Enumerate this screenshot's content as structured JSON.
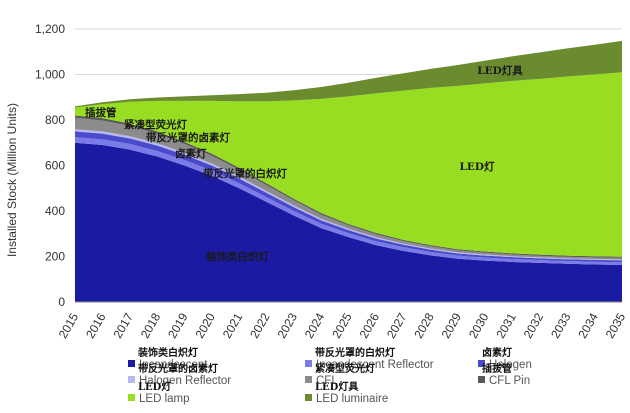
{
  "chart_data": {
    "type": "area",
    "stacked": true,
    "ylabel": "Installed Stock (Million Units)",
    "ylim": [
      0,
      1200
    ],
    "yticks": [
      0,
      200,
      400,
      600,
      800,
      1000,
      1200
    ],
    "ytick_labels": [
      "0",
      "200",
      "400",
      "600",
      "800",
      "1,000",
      "1,200"
    ],
    "categories": [
      "2015",
      "2016",
      "2017",
      "2018",
      "2019",
      "2020",
      "2021",
      "2022",
      "2023",
      "2024",
      "2025",
      "2026",
      "2027",
      "2028",
      "2029",
      "2030",
      "2031",
      "2032",
      "2033",
      "2034",
      "2035"
    ],
    "series": [
      {
        "name": "Incandescent",
        "name_cn": "装饰类白炽灯",
        "color": "#1a1aa3",
        "values": [
          700,
          690,
          670,
          640,
          600,
          555,
          500,
          440,
          380,
          325,
          285,
          250,
          225,
          205,
          190,
          182,
          176,
          172,
          168,
          165,
          163
        ]
      },
      {
        "name": "Incandescent Reflector",
        "name_cn": "带反光罩的白炽灯",
        "color": "#7b7be8",
        "values": [
          25,
          25,
          25,
          24,
          24,
          23,
          22,
          21,
          20,
          19,
          18,
          17,
          16,
          15,
          14,
          13,
          13,
          12,
          12,
          12,
          12
        ]
      },
      {
        "name": "Halogen",
        "name_cn": "卤素灯",
        "color": "#4a4acc",
        "values": [
          25,
          25,
          24,
          24,
          23,
          22,
          21,
          19,
          17,
          15,
          13,
          12,
          11,
          10,
          9,
          9,
          8,
          8,
          8,
          8,
          8
        ]
      },
      {
        "name": "Halogen Reflector",
        "name_cn": "带反光罩的卤素灯",
        "color": "#b8b8ee",
        "values": [
          10,
          10,
          10,
          10,
          10,
          9,
          9,
          8,
          8,
          7,
          6,
          6,
          5,
          5,
          5,
          5,
          4,
          4,
          4,
          4,
          4
        ]
      },
      {
        "name": "CFL",
        "name_cn": "紧凑型荧光灯",
        "color": "#8c8c8c",
        "values": [
          50,
          48,
          45,
          42,
          38,
          34,
          30,
          26,
          22,
          18,
          15,
          13,
          11,
          10,
          9,
          8,
          8,
          7,
          7,
          7,
          7
        ]
      },
      {
        "name": "CFL Pin",
        "name_cn": "插拔管",
        "color": "#5a5a5a",
        "values": [
          10,
          10,
          10,
          10,
          9,
          9,
          8,
          8,
          7,
          7,
          6,
          6,
          5,
          5,
          5,
          5,
          5,
          5,
          5,
          5,
          5
        ]
      },
      {
        "name": "LED lamp",
        "name_cn": "LED灯",
        "color": "#99dd22",
        "values": [
          35,
          62,
          96,
          134,
          180,
          232,
          292,
          360,
          432,
          502,
          561,
          613,
          656,
          691,
          718,
          739,
          758,
          773,
          787,
          799,
          811
        ]
      },
      {
        "name": "LED luminaire",
        "name_cn": "LED灯具",
        "color": "#6a8c2e",
        "values": [
          5,
          8,
          11,
          15,
          20,
          25,
          32,
          38,
          45,
          52,
          60,
          68,
          76,
          84,
          92,
          100,
          108,
          116,
          124,
          131,
          138
        ]
      }
    ],
    "annotations": [
      {
        "text": "LED灯具"
      },
      {
        "text": "LED灯"
      },
      {
        "text": "插拔管"
      },
      {
        "text": "紧凑型荧光灯"
      },
      {
        "text": "带反光罩的卤素灯"
      },
      {
        "text": "卤素灯"
      },
      {
        "text": "带反光罩的白炽灯"
      },
      {
        "text": "装饰类白炽灯"
      }
    ],
    "legend_position": "bottom"
  }
}
